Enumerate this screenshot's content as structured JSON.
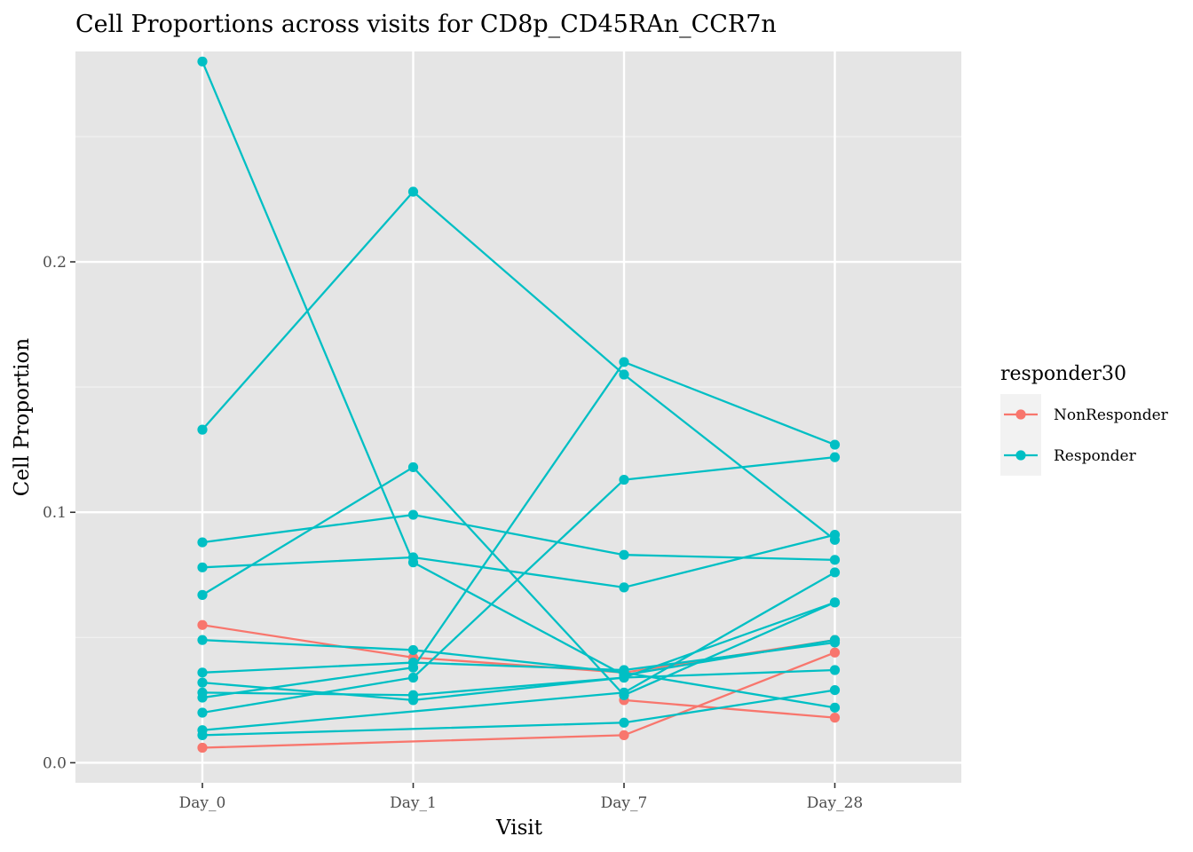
{
  "chart_data": {
    "type": "line",
    "title": "Cell Proportions across visits for CD8p_CD45RAn_CCR7n",
    "xlabel": "Visit",
    "ylabel": "Cell Proportion",
    "categories": [
      "Day_0",
      "Day_1",
      "Day_7",
      "Day_28"
    ],
    "ylim": [
      -0.008,
      0.284
    ],
    "yticks": [
      0.0,
      0.1,
      0.2
    ],
    "ytick_labels": [
      "0.0",
      "0.1",
      "0.2"
    ],
    "grid": true,
    "legend": {
      "title": "responder30",
      "position": "right",
      "entries": [
        {
          "label": "NonResponder",
          "color": "#F8766D"
        },
        {
          "label": "Responder",
          "color": "#00BFC4"
        }
      ]
    },
    "series": [
      {
        "group": "NonResponder",
        "values": [
          0.006,
          null,
          0.011,
          0.044
        ]
      },
      {
        "group": "NonResponder",
        "values": [
          null,
          null,
          0.025,
          0.018
        ]
      },
      {
        "group": "NonResponder",
        "values": [
          0.055,
          0.042,
          0.036,
          0.049
        ]
      },
      {
        "group": "Responder",
        "values": [
          0.28,
          0.08,
          0.035,
          0.049
        ]
      },
      {
        "group": "Responder",
        "values": [
          0.133,
          0.228,
          0.155,
          0.089
        ]
      },
      {
        "group": "Responder",
        "values": [
          0.067,
          0.118,
          0.027,
          0.064
        ]
      },
      {
        "group": "Responder",
        "values": [
          0.088,
          0.099,
          0.083,
          0.081
        ]
      },
      {
        "group": "Responder",
        "values": [
          0.078,
          0.082,
          0.07,
          0.091
        ]
      },
      {
        "group": "Responder",
        "values": [
          0.049,
          0.045,
          0.036,
          0.022
        ]
      },
      {
        "group": "Responder",
        "values": [
          0.036,
          0.04,
          0.037,
          0.048
        ]
      },
      {
        "group": "Responder",
        "values": [
          0.032,
          0.025,
          0.034,
          0.037
        ]
      },
      {
        "group": "Responder",
        "values": [
          0.028,
          0.027,
          0.034,
          0.064
        ]
      },
      {
        "group": "Responder",
        "values": [
          0.026,
          0.038,
          0.16,
          0.127
        ]
      },
      {
        "group": "Responder",
        "values": [
          0.02,
          0.034,
          0.113,
          0.122
        ]
      },
      {
        "group": "Responder",
        "values": [
          0.013,
          null,
          0.028,
          0.076
        ]
      },
      {
        "group": "Responder",
        "values": [
          0.011,
          null,
          0.016,
          0.029
        ]
      }
    ]
  }
}
